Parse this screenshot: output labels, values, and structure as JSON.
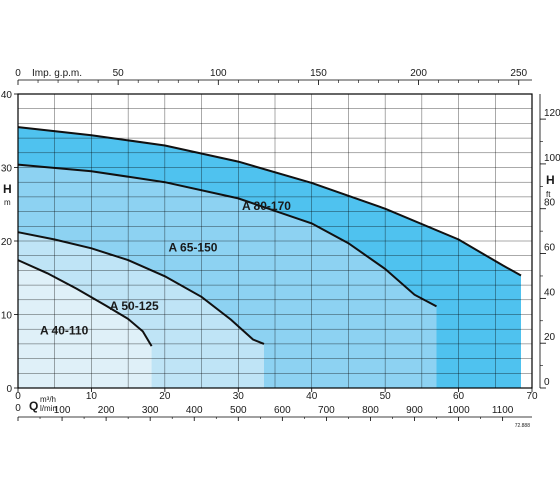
{
  "chart_data": {
    "type": "area",
    "title": "",
    "top_axis": {
      "label": "Imp. g.p.m.",
      "ticks": [
        "0",
        "50",
        "100",
        "150",
        "200",
        "250"
      ],
      "range": [
        0,
        250
      ]
    },
    "bottom_axis_m3h": {
      "label": "Q",
      "unit": "m³/h",
      "ticks": [
        "0",
        "10",
        "20",
        "30",
        "40",
        "50",
        "60",
        "70"
      ],
      "range": [
        0,
        70
      ]
    },
    "bottom_axis_lmin": {
      "unit": "l/min",
      "ticks": [
        "0",
        "100",
        "200",
        "300",
        "400",
        "500",
        "600",
        "700",
        "800",
        "900",
        "1000",
        "1100"
      ]
    },
    "left_axis": {
      "label": "H",
      "unit": "m",
      "ticks": [
        "0",
        "10",
        "20",
        "30",
        "40"
      ],
      "range": [
        0,
        40
      ]
    },
    "right_axis": {
      "label": "H",
      "unit": "ft",
      "ticks": [
        "0",
        "20",
        "40",
        "60",
        "80",
        "100",
        "120"
      ],
      "range": [
        0,
        131.2
      ]
    },
    "grid": true,
    "ref_code": "72.888",
    "series": [
      {
        "name": "A 40-110",
        "color": "#dff0f8",
        "points": [
          [
            0,
            17.4
          ],
          [
            4,
            15.6
          ],
          [
            8,
            13.5
          ],
          [
            12,
            11.2
          ],
          [
            15,
            9.4
          ],
          [
            17,
            7.7
          ],
          [
            18.2,
            5.7
          ],
          [
            18.2,
            0
          ]
        ]
      },
      {
        "name": "A 50-125",
        "color": "#bfe4f6",
        "points": [
          [
            0,
            21.2
          ],
          [
            5,
            20.2
          ],
          [
            10,
            19.0
          ],
          [
            15,
            17.4
          ],
          [
            20,
            15.2
          ],
          [
            25,
            12.4
          ],
          [
            29,
            9.3
          ],
          [
            32,
            6.6
          ],
          [
            33.5,
            6.0
          ],
          [
            33.5,
            0
          ]
        ]
      },
      {
        "name": "A 65-150",
        "color": "#8dd2f2",
        "points": [
          [
            0,
            30.4
          ],
          [
            10,
            29.5
          ],
          [
            20,
            28.0
          ],
          [
            30,
            25.8
          ],
          [
            40,
            22.4
          ],
          [
            45,
            19.7
          ],
          [
            50,
            16.2
          ],
          [
            54,
            12.7
          ],
          [
            57,
            11.1
          ],
          [
            57,
            0
          ]
        ]
      },
      {
        "name": "A 80-170",
        "color": "#4fc2ef",
        "points": [
          [
            0,
            35.5
          ],
          [
            10,
            34.4
          ],
          [
            20,
            33.0
          ],
          [
            30,
            30.8
          ],
          [
            40,
            27.9
          ],
          [
            50,
            24.4
          ],
          [
            60,
            20.2
          ],
          [
            66,
            16.7
          ],
          [
            68.5,
            15.3
          ],
          [
            68.5,
            0
          ]
        ]
      }
    ]
  }
}
